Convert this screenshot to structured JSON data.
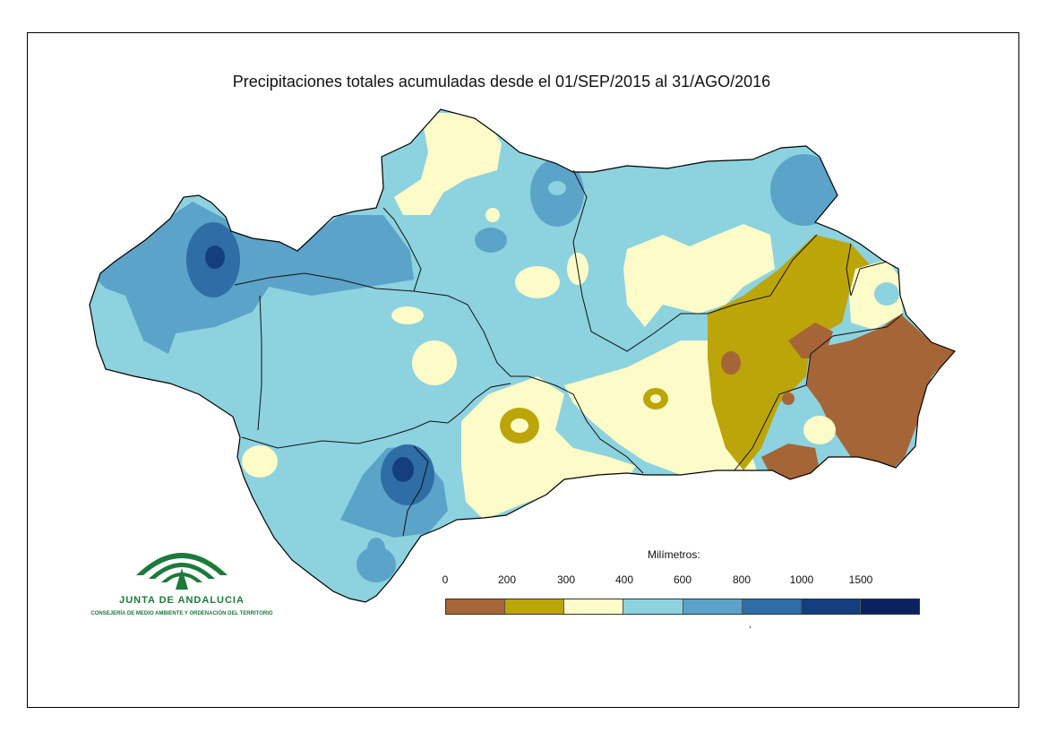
{
  "map": {
    "title": "Precipitaciones totales acumuladas desde el 01/SEP/2015 al 31/AGO/2016",
    "region": "Andalucía",
    "legend": {
      "caption": "Milímetros:",
      "ticks": [
        "0",
        "200",
        "300",
        "400",
        "600",
        "800",
        "1000",
        "1500"
      ],
      "classes": [
        {
          "range": "0-200",
          "color": "#a66536"
        },
        {
          "range": "200-300",
          "color": "#bca508"
        },
        {
          "range": "300-400",
          "color": "#fdfbc7"
        },
        {
          "range": "400-600",
          "color": "#8dd2df"
        },
        {
          "range": "600-800",
          "color": "#5ba3c9"
        },
        {
          "range": "800-1000",
          "color": "#2e6da5"
        },
        {
          "range": "1000-1500",
          "color": "#153e7e"
        },
        {
          "range": ">1500",
          "color": "#0a2260"
        }
      ]
    }
  },
  "logo": {
    "name": "JUNTA DE ANDALUCIA",
    "subtitle": "CONSEJERÍA DE MEDIO AMBIENTE Y ORDENACIÓN DEL TERRITORIO",
    "color": "#1c7a3a"
  }
}
